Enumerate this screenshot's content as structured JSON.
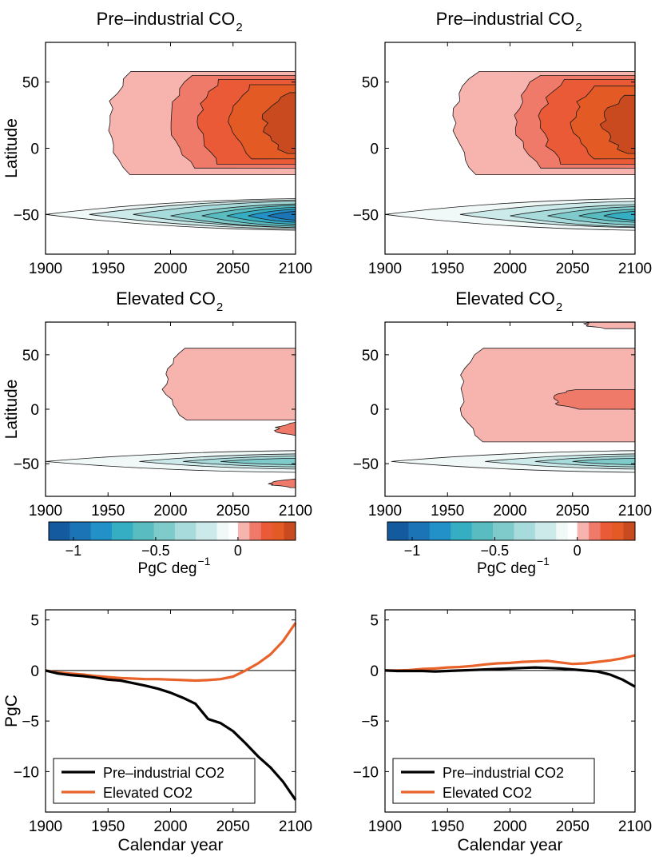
{
  "chart_data": [
    {
      "id": "contour-tl",
      "type": "heatmap",
      "title": "Pre–industrial CO",
      "title_sub": "2",
      "xlabel": "",
      "ylabel": "Latitude",
      "xlim": [
        1900,
        2100
      ],
      "ylim": [
        -80,
        80
      ],
      "xticks": [
        "1900",
        "1950",
        "2000",
        "2050",
        "2100"
      ],
      "yticks": [
        "50",
        "0",
        "−50"
      ],
      "ytick_values": [
        50,
        0,
        -50
      ],
      "xtick_values": [
        1900,
        1950,
        2000,
        2050,
        2100
      ],
      "positive_bands": [
        {
          "level": 1,
          "start": 1950,
          "top": 58,
          "bottom": -20
        },
        {
          "level": 2,
          "start": 2000,
          "top": 55,
          "bottom": -15
        },
        {
          "level": 3,
          "start": 2022,
          "top": 52,
          "bottom": -12
        },
        {
          "level": 4,
          "start": 2048,
          "top": 48,
          "bottom": -8
        },
        {
          "level": 5,
          "start": 2075,
          "top": 42,
          "bottom": -4
        }
      ],
      "negative_bands": [
        {
          "level": 1,
          "start": 1900,
          "center": -50,
          "half": 12
        },
        {
          "level": 2,
          "start": 1935,
          "center": -50,
          "half": 11
        },
        {
          "level": 3,
          "start": 1970,
          "center": -50,
          "half": 10
        },
        {
          "level": 4,
          "start": 2000,
          "center": -51,
          "half": 9
        },
        {
          "level": 5,
          "start": 2025,
          "center": -51,
          "half": 8
        },
        {
          "level": 6,
          "start": 2045,
          "center": -51,
          "half": 6.5
        },
        {
          "level": 7,
          "start": 2062,
          "center": -51,
          "half": 5
        },
        {
          "level": 8,
          "start": 2078,
          "center": -51,
          "half": 3.5
        }
      ]
    },
    {
      "id": "contour-tr",
      "type": "heatmap",
      "title": "Pre–industrial CO",
      "title_sub": "2",
      "xlabel": "",
      "ylabel": "",
      "xlim": [
        1900,
        2100
      ],
      "ylim": [
        -80,
        80
      ],
      "xticks": [
        "1900",
        "1950",
        "2000",
        "2050",
        "2100"
      ],
      "yticks": [
        "50",
        "0",
        "−50"
      ],
      "ytick_values": [
        50,
        0,
        -50
      ],
      "xtick_values": [
        1900,
        1950,
        2000,
        2050,
        2100
      ],
      "positive_bands": [
        {
          "level": 1,
          "start": 1955,
          "top": 58,
          "bottom": -20
        },
        {
          "level": 2,
          "start": 2005,
          "top": 55,
          "bottom": -15
        },
        {
          "level": 3,
          "start": 2025,
          "top": 52,
          "bottom": -12
        },
        {
          "level": 4,
          "start": 2050,
          "top": 47,
          "bottom": -8
        },
        {
          "level": 5,
          "start": 2075,
          "top": 40,
          "bottom": -4
        }
      ],
      "negative_bands": [
        {
          "level": 1,
          "start": 1900,
          "center": -50,
          "half": 12
        },
        {
          "level": 2,
          "start": 1960,
          "center": -50,
          "half": 10
        },
        {
          "level": 3,
          "start": 2000,
          "center": -51,
          "half": 8.5
        },
        {
          "level": 4,
          "start": 2030,
          "center": -51,
          "half": 7
        },
        {
          "level": 5,
          "start": 2055,
          "center": -51,
          "half": 5
        },
        {
          "level": 6,
          "start": 2075,
          "center": -51,
          "half": 3.5
        }
      ]
    },
    {
      "id": "contour-ml",
      "type": "heatmap",
      "title": "Elevated CO",
      "title_sub": "2",
      "xlabel": "",
      "ylabel": "Latitude",
      "xlim": [
        1900,
        2100
      ],
      "ylim": [
        -80,
        80
      ],
      "xticks": [
        "1900",
        "1950",
        "2000",
        "2050",
        "2100"
      ],
      "yticks": [
        "50",
        "0",
        "−50"
      ],
      "ytick_values": [
        50,
        0,
        -50
      ],
      "xtick_values": [
        1900,
        1950,
        2000,
        2050,
        2100
      ],
      "positive_bands": [
        {
          "level": 1,
          "start": 1995,
          "top": 56,
          "bottom": -10
        },
        {
          "level": 2,
          "start": 2085,
          "top": -12,
          "bottom": -25
        },
        {
          "level": 2,
          "start": 2080,
          "top": -64,
          "bottom": -72
        }
      ],
      "negative_bands": [
        {
          "level": 1,
          "start": 1900,
          "center": -48,
          "half": 10
        },
        {
          "level": 2,
          "start": 1975,
          "center": -48,
          "half": 7
        },
        {
          "level": 3,
          "start": 2010,
          "center": -48,
          "half": 5
        },
        {
          "level": 4,
          "start": 2040,
          "center": -48,
          "half": 3
        }
      ]
    },
    {
      "id": "contour-mr",
      "type": "heatmap",
      "title": "Elevated CO",
      "title_sub": "2",
      "xlabel": "",
      "ylabel": "",
      "xlim": [
        1900,
        2100
      ],
      "ylim": [
        -80,
        80
      ],
      "xticks": [
        "1900",
        "1950",
        "2000",
        "2050",
        "2100"
      ],
      "yticks": [
        "50",
        "0",
        "−50"
      ],
      "ytick_values": [
        50,
        0,
        -50
      ],
      "xtick_values": [
        1900,
        1950,
        2000,
        2050,
        2100
      ],
      "positive_bands": [
        {
          "level": 1,
          "start": 1960,
          "top": 56,
          "bottom": -30
        },
        {
          "level": 2,
          "start": 2035,
          "top": 18,
          "bottom": 0
        },
        {
          "level": 1,
          "start": 2060,
          "top": 82,
          "bottom": 74
        }
      ],
      "negative_bands": [
        {
          "level": 1,
          "start": 1905,
          "center": -48,
          "half": 10
        },
        {
          "level": 2,
          "start": 1980,
          "center": -48,
          "half": 7
        },
        {
          "level": 3,
          "start": 2020,
          "center": -48,
          "half": 5
        },
        {
          "level": 4,
          "start": 2050,
          "center": -48,
          "half": 3
        }
      ]
    },
    {
      "id": "line-bl",
      "type": "line",
      "title": "",
      "xlabel": "Calendar year",
      "ylabel": "PgC",
      "xlim": [
        1900,
        2100
      ],
      "ylim": [
        -14,
        6
      ],
      "xticks": [
        "1900",
        "1950",
        "2000",
        "2050",
        "2100"
      ],
      "xtick_values": [
        1900,
        1950,
        2000,
        2050,
        2100
      ],
      "yticks": [
        "5",
        "0",
        "−5",
        "−10"
      ],
      "ytick_values": [
        5,
        0,
        -5,
        -10
      ],
      "x": [
        1900,
        1910,
        1920,
        1930,
        1940,
        1950,
        1960,
        1970,
        1980,
        1990,
        2000,
        2010,
        2020,
        2030,
        2040,
        2050,
        2060,
        2070,
        2080,
        2090,
        2100
      ],
      "series": [
        {
          "name": "Pre–industrial CO2",
          "color": "#000000",
          "values": [
            0,
            -0.3,
            -0.45,
            -0.55,
            -0.7,
            -0.9,
            -1.0,
            -1.25,
            -1.5,
            -1.8,
            -2.2,
            -2.7,
            -3.3,
            -4.8,
            -5.2,
            -6.0,
            -7.2,
            -8.5,
            -9.6,
            -11.0,
            -12.8
          ]
        },
        {
          "name": "Elevated CO2",
          "color": "#e8622a",
          "values": [
            0,
            -0.2,
            -0.3,
            -0.4,
            -0.55,
            -0.65,
            -0.75,
            -0.8,
            -0.85,
            -0.85,
            -0.9,
            -0.95,
            -1.0,
            -0.95,
            -0.85,
            -0.6,
            0.0,
            0.7,
            1.6,
            2.9,
            4.7
          ]
        }
      ],
      "legend_position": "bottom-left"
    },
    {
      "id": "line-br",
      "type": "line",
      "title": "",
      "xlabel": "Calendar year",
      "ylabel": "",
      "xlim": [
        1900,
        2100
      ],
      "ylim": [
        -14,
        6
      ],
      "xticks": [
        "1900",
        "1950",
        "2000",
        "2050",
        "2100"
      ],
      "xtick_values": [
        1900,
        1950,
        2000,
        2050,
        2100
      ],
      "yticks": [
        "5",
        "0",
        "−5",
        "−10"
      ],
      "ytick_values": [
        5,
        0,
        -5,
        -10
      ],
      "x": [
        1900,
        1910,
        1920,
        1930,
        1940,
        1950,
        1960,
        1970,
        1980,
        1990,
        2000,
        2010,
        2020,
        2030,
        2040,
        2050,
        2060,
        2070,
        2080,
        2090,
        2100
      ],
      "series": [
        {
          "name": "Pre–industrial CO2",
          "color": "#000000",
          "values": [
            0,
            -0.05,
            -0.05,
            -0.05,
            -0.1,
            -0.05,
            0.0,
            0.05,
            0.1,
            0.15,
            0.2,
            0.25,
            0.3,
            0.25,
            0.2,
            0.1,
            0.0,
            -0.1,
            -0.4,
            -0.9,
            -1.6
          ]
        },
        {
          "name": "Elevated CO2",
          "color": "#e8622a",
          "values": [
            0,
            0.0,
            0.05,
            0.15,
            0.2,
            0.3,
            0.35,
            0.45,
            0.6,
            0.7,
            0.75,
            0.85,
            0.9,
            0.95,
            0.8,
            0.65,
            0.7,
            0.85,
            1.0,
            1.2,
            1.5
          ]
        }
      ],
      "legend_position": "bottom-left"
    }
  ],
  "colorbars": [
    {
      "id": "colorbar-left",
      "ticks": [
        "−1",
        "−0.5",
        "0"
      ],
      "tick_values": [
        -1,
        -0.5,
        0
      ],
      "label_main": "PgC deg",
      "label_sup": "−1",
      "min": -1.15,
      "max": 0.35
    },
    {
      "id": "colorbar-right",
      "ticks": [
        "−1",
        "−0.5",
        "0"
      ],
      "tick_values": [
        -1,
        -0.5,
        0
      ],
      "label_main": "PgC deg",
      "label_sup": "−1",
      "min": -1.15,
      "max": 0.35
    }
  ],
  "colors": {
    "pos": [
      "#f7b3ae",
      "#f07a6a",
      "#ea5a36",
      "#e35a25",
      "#c94a1e"
    ],
    "neg": [
      "#f0f8f8",
      "#cdeaea",
      "#a8dcdc",
      "#7fcbcc",
      "#58bcc0",
      "#35aec3",
      "#2291c8",
      "#1b74b6",
      "#145a9e"
    ],
    "axis": "#000000"
  }
}
